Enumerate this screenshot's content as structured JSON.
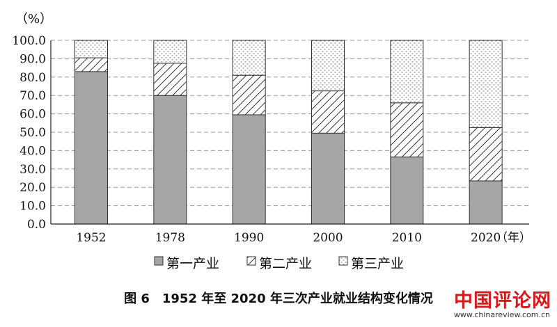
{
  "chart_data": {
    "type": "bar",
    "stacked": true,
    "categories": [
      "1952",
      "1978",
      "1990",
      "2000",
      "2010",
      "2020"
    ],
    "series": [
      {
        "name": "第一产业",
        "values": [
          83.0,
          70.0,
          59.5,
          49.5,
          36.5,
          23.5
        ],
        "fill": "#a6a6a6",
        "pattern": "solid"
      },
      {
        "name": "第二产业",
        "values": [
          7.5,
          17.5,
          21.5,
          23.0,
          29.5,
          29.0
        ],
        "fill": "#ffffff",
        "pattern": "diagonal-hatch"
      },
      {
        "name": "第三产业",
        "values": [
          9.5,
          12.5,
          19.0,
          27.5,
          34.0,
          47.5
        ],
        "fill": "#ffffff",
        "pattern": "dots"
      }
    ],
    "y_unit": "（%）",
    "x_unit": "（年）",
    "ylim": [
      0,
      100
    ],
    "y_ticks": [
      "0.0",
      "10.0",
      "20.0",
      "30.0",
      "40.0",
      "50.0",
      "60.0",
      "70.0",
      "80.0",
      "90.0",
      "100.0"
    ],
    "grid": "horizontal dashed",
    "legend_position": "bottom"
  },
  "caption": "图 6　1952 年至 2020 年三次产业就业结构变化情况",
  "watermark": {
    "title": "中国评论网",
    "url": "www.chinareview.com.cn"
  }
}
